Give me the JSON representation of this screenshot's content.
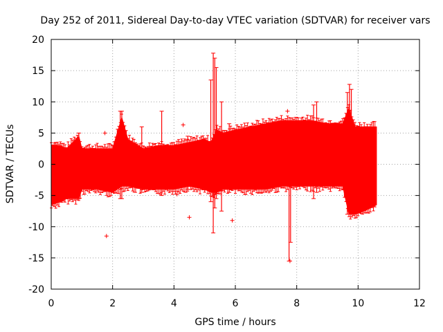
{
  "chart_data": {
    "type": "scatter",
    "title": "Day 252 of 2011, Sidereal Day-to-day VTEC variation (SDTVAR) for receiver vars",
    "xlabel": "GPS time / hours",
    "ylabel": "SDTVAR / TECUs",
    "xlim": [
      0,
      12
    ],
    "ylim": [
      -20,
      20
    ],
    "xticks": [
      0,
      2,
      4,
      6,
      8,
      10,
      12
    ],
    "yticks": [
      -20,
      -15,
      -10,
      -5,
      0,
      5,
      10,
      15,
      20
    ],
    "grid": true,
    "color": "#ff0000",
    "marker": "plus",
    "band": {
      "x": [
        0.0,
        0.3,
        0.5,
        0.9,
        1.0,
        1.5,
        2.0,
        2.3,
        2.5,
        3.0,
        3.5,
        4.0,
        4.5,
        5.0,
        5.2,
        5.4,
        5.6,
        6.0,
        6.5,
        7.0,
        7.5,
        8.0,
        8.5,
        9.0,
        9.5,
        9.7,
        9.9,
        10.2,
        10.6
      ],
      "upper": [
        3.0,
        3.0,
        2.5,
        4.5,
        2.5,
        2.5,
        2.5,
        7.5,
        4.0,
        2.5,
        3.0,
        3.0,
        3.5,
        4.0,
        3.5,
        5.5,
        5.0,
        5.5,
        6.0,
        6.5,
        7.0,
        7.0,
        7.0,
        6.5,
        6.5,
        9.0,
        6.0,
        6.0,
        6.0
      ],
      "lower": [
        -6.5,
        -6.0,
        -5.5,
        -5.5,
        -4.0,
        -4.0,
        -4.5,
        -3.5,
        -3.5,
        -4.0,
        -4.0,
        -4.0,
        -3.5,
        -4.0,
        -4.5,
        -4.5,
        -4.0,
        -4.0,
        -4.0,
        -4.0,
        -3.5,
        -3.5,
        -3.5,
        -3.5,
        -3.5,
        -8.0,
        -8.0,
        -7.5,
        -6.5
      ]
    },
    "spikes": [
      {
        "x": 0.15,
        "low": -3,
        "high": 3.5
      },
      {
        "x": 0.9,
        "low": -5.5,
        "high": 5.0
      },
      {
        "x": 2.25,
        "low": -5.5,
        "high": 8.5
      },
      {
        "x": 2.3,
        "low": -5.5,
        "high": 8.5
      },
      {
        "x": 2.95,
        "low": -4.5,
        "high": 6.0
      },
      {
        "x": 3.6,
        "low": -5.0,
        "high": 8.5
      },
      {
        "x": 4.45,
        "low": -4.0,
        "high": 4.5
      },
      {
        "x": 4.95,
        "low": -3.5,
        "high": 4.0
      },
      {
        "x": 5.2,
        "low": -6.0,
        "high": 13.5
      },
      {
        "x": 5.28,
        "low": -11.0,
        "high": 17.8
      },
      {
        "x": 5.33,
        "low": -7.0,
        "high": 17.0
      },
      {
        "x": 5.38,
        "low": -5.5,
        "high": 15.5
      },
      {
        "x": 5.55,
        "low": -7.5,
        "high": 10.0
      },
      {
        "x": 5.8,
        "low": -4.5,
        "high": 6.5
      },
      {
        "x": 7.75,
        "low": -15.5,
        "high": 5.0
      },
      {
        "x": 7.8,
        "low": -12.5,
        "high": 5.0
      },
      {
        "x": 8.55,
        "low": -5.5,
        "high": 9.5
      },
      {
        "x": 8.65,
        "low": -4.5,
        "high": 10.0
      },
      {
        "x": 9.65,
        "low": -8.0,
        "high": 11.5
      },
      {
        "x": 9.72,
        "low": -7.5,
        "high": 12.8
      },
      {
        "x": 9.78,
        "low": -7.0,
        "high": 12.0
      }
    ],
    "outliers": [
      {
        "x": 1.75,
        "y": 5.0
      },
      {
        "x": 1.8,
        "y": -11.5
      },
      {
        "x": 4.1,
        "y": -4.8
      },
      {
        "x": 4.3,
        "y": 6.3
      },
      {
        "x": 4.5,
        "y": -8.5
      },
      {
        "x": 5.9,
        "y": -9.0
      },
      {
        "x": 7.7,
        "y": 8.5
      },
      {
        "x": 7.78,
        "y": -15.5
      }
    ]
  }
}
